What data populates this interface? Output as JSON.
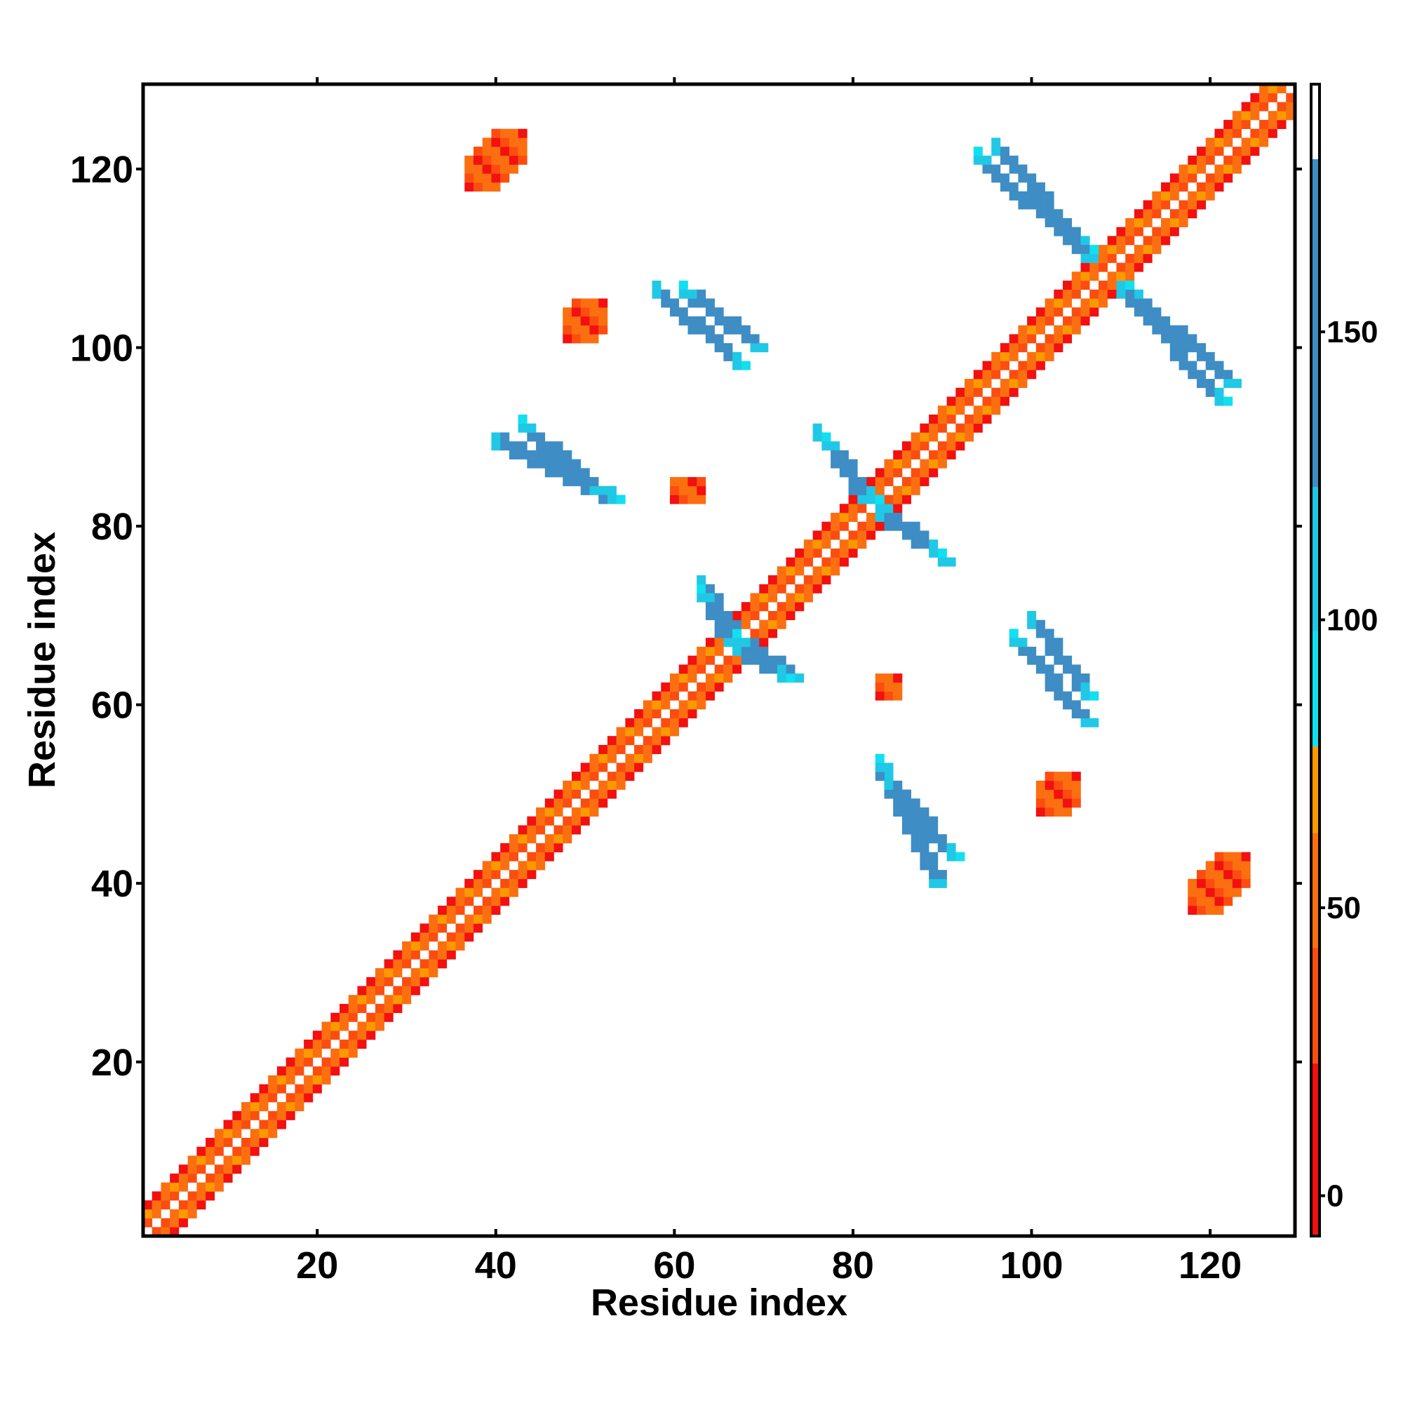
{
  "chart_data": {
    "type": "heatmap",
    "title": "",
    "xlabel": "Residue index",
    "ylabel": "Residue index",
    "xlim": [
      0.5,
      129.5
    ],
    "ylim": [
      0.5,
      129.5
    ],
    "x_ticks": [
      20,
      40,
      60,
      80,
      100,
      120
    ],
    "y_ticks": [
      20,
      40,
      60,
      80,
      100,
      120
    ],
    "grid": false,
    "colorbar": {
      "range": [
        -7,
        193
      ],
      "ticks": [
        0,
        50,
        100,
        150
      ],
      "tick_labels": [
        "0",
        "50",
        "100",
        "150"
      ],
      "bins": [
        {
          "from": -7,
          "to": 23,
          "color": "#f21010"
        },
        {
          "from": 23,
          "to": 43,
          "color": "#fb4d10"
        },
        {
          "from": 43,
          "to": 63,
          "color": "#fb6f10"
        },
        {
          "from": 63,
          "to": 78,
          "color": "#fb9a00"
        },
        {
          "from": 78,
          "to": 98,
          "color": "#10e0f0"
        },
        {
          "from": 98,
          "to": 123,
          "color": "#20c8e6"
        },
        {
          "from": 123,
          "to": 180,
          "color": "#3e8dc4"
        },
        {
          "from": 180,
          "to": 193,
          "color": "#ffffff"
        }
      ]
    },
    "cell_value_note": "Values are approximate angles/contacts per residue pair; blank cells have no value",
    "features": [
      {
        "kind": "diagonal",
        "from": 1,
        "to": 129,
        "near_value": 25,
        "far_value": 45
      },
      {
        "kind": "strand_pair",
        "x0": 40,
        "y0": 89,
        "x1": 53,
        "y1": 83,
        "value": 150,
        "width": 2
      },
      {
        "kind": "strand_pair",
        "x0": 58,
        "y0": 106,
        "x1": 67,
        "y1": 98,
        "value": 150,
        "width": 2
      },
      {
        "kind": "strand_pair",
        "x0": 96,
        "y0": 122,
        "x1": 106,
        "y1": 111,
        "value": 150,
        "width": 2
      },
      {
        "kind": "strand_pair",
        "x0": 110,
        "y0": 106,
        "x1": 121,
        "y1": 94,
        "value": 150,
        "width": 2
      },
      {
        "kind": "strand_pair",
        "x0": 76,
        "y0": 90,
        "x1": 82,
        "y1": 83,
        "value": 150,
        "width": 2
      },
      {
        "kind": "strand_pair",
        "x0": 83,
        "y0": 81,
        "x1": 89,
        "y1": 77,
        "value": 150,
        "width": 2
      },
      {
        "kind": "strand_pair",
        "x0": 63,
        "y0": 73,
        "x1": 67,
        "y1": 67,
        "value": 150,
        "width": 2
      },
      {
        "kind": "strand_pair",
        "x0": 67,
        "y0": 66,
        "x1": 72,
        "y1": 63,
        "value": 150,
        "width": 2
      },
      {
        "kind": "strand_pair",
        "x0": 84,
        "y0": 51,
        "x1": 91,
        "y1": 43,
        "value": 150,
        "width": 2
      },
      {
        "kind": "strand_pair",
        "x0": 100,
        "y0": 69,
        "x1": 106,
        "y1": 61,
        "value": 150,
        "width": 2
      },
      {
        "kind": "blob",
        "x0": 37,
        "y0": 118,
        "x1": 43,
        "y1": 124,
        "value": 20
      },
      {
        "kind": "blob",
        "x0": 118,
        "y0": 37,
        "x1": 124,
        "y1": 43,
        "value": 20
      },
      {
        "kind": "blob",
        "x0": 48,
        "y0": 101,
        "x1": 52,
        "y1": 105,
        "value": 20
      },
      {
        "kind": "blob",
        "x0": 101,
        "y0": 48,
        "x1": 105,
        "y1": 52,
        "value": 20
      },
      {
        "kind": "blob",
        "x0": 60,
        "y0": 83,
        "x1": 63,
        "y1": 85,
        "value": 20
      },
      {
        "kind": "blob",
        "x0": 83,
        "y0": 61,
        "x1": 85,
        "y1": 63,
        "value": 20
      }
    ]
  }
}
